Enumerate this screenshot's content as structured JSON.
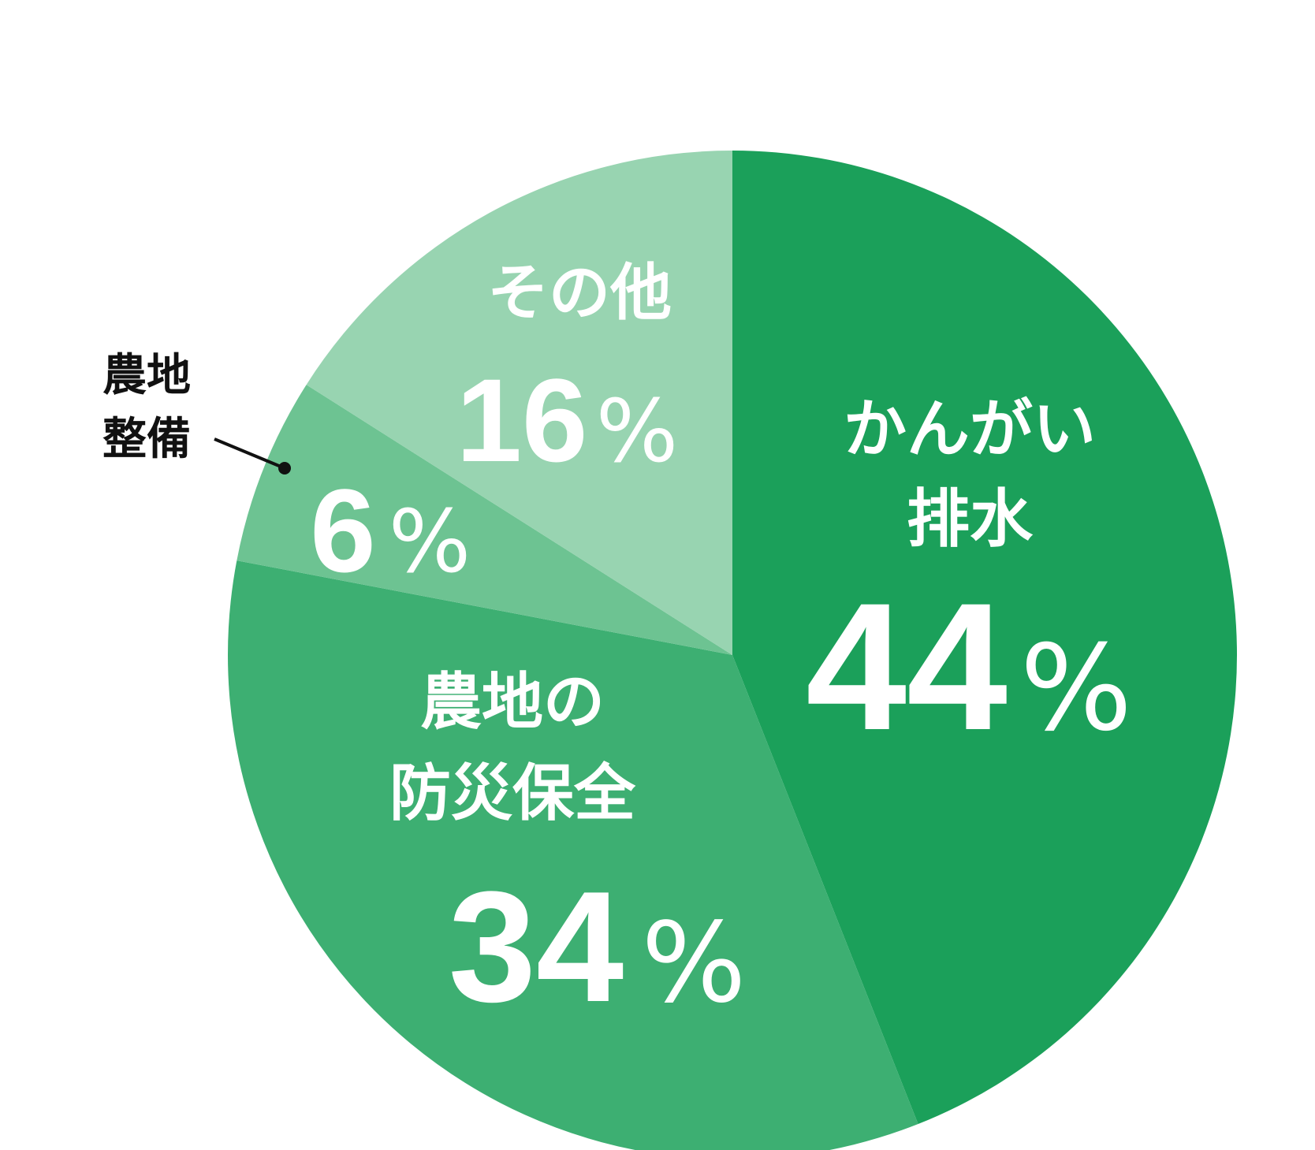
{
  "chart_data": {
    "type": "pie",
    "start_angle_deg": 0,
    "direction": "clockwise",
    "slices": [
      {
        "label_lines": [
          "かんがい",
          "排水"
        ],
        "value": 44,
        "value_text": "44",
        "unit": "%",
        "color": "#1ba05a",
        "label_position": "inside"
      },
      {
        "label_lines": [
          "農地の",
          "防災保全"
        ],
        "value": 34,
        "value_text": "34",
        "unit": "%",
        "color": "#3daf72",
        "label_position": "inside"
      },
      {
        "label_lines": [
          "農地",
          "整備"
        ],
        "value": 6,
        "value_text": "6",
        "unit": "%",
        "color": "#6dc392",
        "label_position": "outside-left"
      },
      {
        "label_lines": [
          "その他"
        ],
        "value": 16,
        "value_text": "16",
        "unit": "%",
        "color": "#98d4b1",
        "label_position": "inside"
      }
    ],
    "title": "",
    "legend": "none"
  }
}
